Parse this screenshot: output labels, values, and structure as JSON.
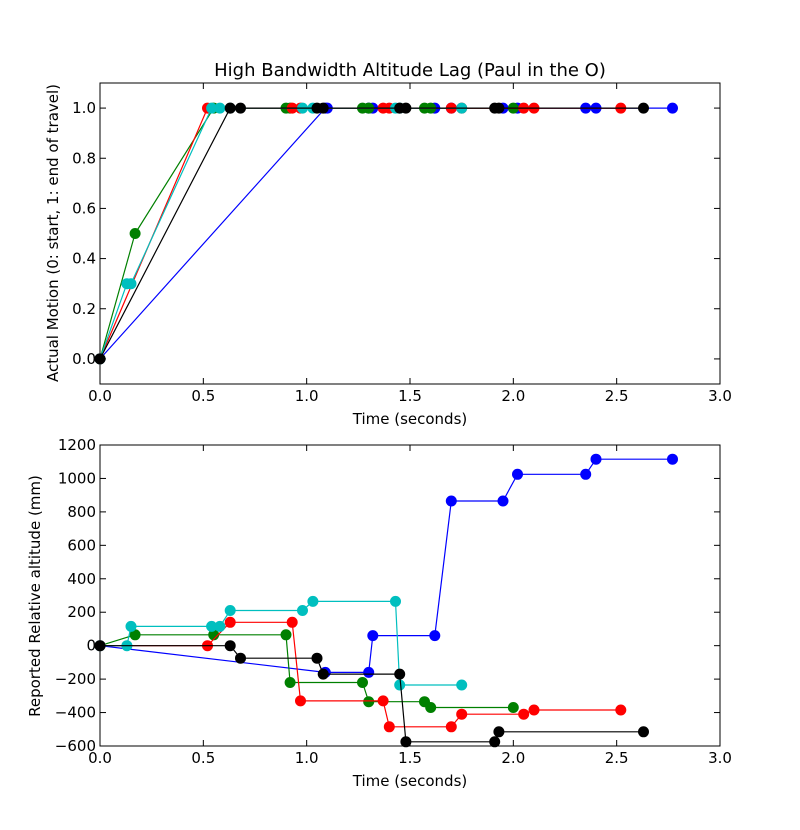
{
  "chart_data": [
    {
      "type": "line",
      "title": "High Bandwidth Altitude Lag (Paul in the O)",
      "xlabel": "Time (seconds)",
      "ylabel": "Actual Motion (0: start, 1: end of travel)",
      "xlim": [
        0,
        3.0
      ],
      "ylim": [
        -0.1,
        1.1
      ],
      "x_ticks": [
        "0.0",
        "0.5",
        "1.0",
        "1.5",
        "2.0",
        "2.5",
        "3.0"
      ],
      "y_ticks": [
        "0.0",
        "0.2",
        "0.4",
        "0.6",
        "0.8",
        "1.0"
      ],
      "x_tick_values": [
        0,
        0.5,
        1.0,
        1.5,
        2.0,
        2.5,
        3.0
      ],
      "y_tick_values": [
        0,
        0.2,
        0.4,
        0.6,
        0.8,
        1.0
      ],
      "grid": false,
      "series": [
        {
          "color": "#0000ff",
          "x": [
            0,
            1.09,
            1.1,
            1.3,
            1.32,
            1.62,
            1.7,
            1.95,
            2.02,
            2.35,
            2.4,
            2.77
          ],
          "y": [
            0,
            1,
            1,
            1,
            1,
            1,
            1,
            1,
            1,
            1,
            1,
            1
          ]
        },
        {
          "color": "#008000",
          "x": [
            0,
            0.17,
            0.55,
            0.9,
            0.92,
            1.27,
            1.3,
            1.57,
            1.6,
            2.0
          ],
          "y": [
            0,
            0.5,
            1,
            1,
            1,
            1,
            1,
            1,
            1,
            1
          ]
        },
        {
          "color": "#ff0000",
          "x": [
            0,
            0.52,
            0.63,
            0.93,
            0.97,
            1.37,
            1.4,
            1.7,
            1.75,
            2.05,
            2.1,
            2.52
          ],
          "y": [
            0,
            1,
            1,
            1,
            1,
            1,
            1,
            1,
            1,
            1,
            1,
            1
          ]
        },
        {
          "color": "#00bfbf",
          "x": [
            0,
            0.13,
            0.15,
            0.54,
            0.58,
            0.63,
            0.98,
            1.03,
            1.43,
            1.45,
            1.75
          ],
          "y": [
            0,
            0.3,
            0.3,
            1,
            1,
            1,
            1,
            1,
            1,
            1,
            1
          ]
        },
        {
          "color": "#000000",
          "x": [
            0,
            0.63,
            0.68,
            1.05,
            1.08,
            1.45,
            1.48,
            1.91,
            1.93,
            2.63
          ],
          "y": [
            0,
            1,
            1,
            1,
            1,
            1,
            1,
            1,
            1,
            1
          ]
        }
      ]
    },
    {
      "type": "line",
      "title": "",
      "xlabel": "Time (seconds)",
      "ylabel": "Reported Relative altitude (mm)",
      "xlim": [
        0,
        3.0
      ],
      "ylim": [
        -600,
        1200
      ],
      "x_ticks": [
        "0.0",
        "0.5",
        "1.0",
        "1.5",
        "2.0",
        "2.5",
        "3.0"
      ],
      "y_ticks": [
        "−600",
        "−400",
        "−200",
        "0",
        "200",
        "400",
        "600",
        "800",
        "1000",
        "1200"
      ],
      "x_tick_values": [
        0,
        0.5,
        1.0,
        1.5,
        2.0,
        2.5,
        3.0
      ],
      "y_tick_values": [
        -600,
        -400,
        -200,
        0,
        200,
        400,
        600,
        800,
        1000,
        1200
      ],
      "grid": false,
      "series": [
        {
          "color": "#0000ff",
          "x": [
            0,
            1.09,
            1.3,
            1.32,
            1.62,
            1.7,
            1.95,
            2.02,
            2.35,
            2.4,
            2.77
          ],
          "y": [
            0,
            -160,
            -160,
            60,
            60,
            865,
            865,
            1025,
            1025,
            1115,
            1115
          ]
        },
        {
          "color": "#008000",
          "x": [
            0,
            0.17,
            0.55,
            0.9,
            0.92,
            1.27,
            1.3,
            1.57,
            1.6,
            2.0
          ],
          "y": [
            0,
            65,
            65,
            65,
            -220,
            -220,
            -335,
            -335,
            -370,
            -370
          ]
        },
        {
          "color": "#ff0000",
          "x": [
            0,
            0.52,
            0.63,
            0.93,
            0.97,
            1.37,
            1.4,
            1.7,
            1.75,
            2.05,
            2.1,
            2.52
          ],
          "y": [
            0,
            0,
            140,
            140,
            -330,
            -330,
            -485,
            -485,
            -410,
            -410,
            -385,
            -385
          ]
        },
        {
          "color": "#00bfbf",
          "x": [
            0,
            0.13,
            0.15,
            0.54,
            0.58,
            0.63,
            0.98,
            1.03,
            1.43,
            1.45,
            1.75
          ],
          "y": [
            0,
            0,
            115,
            115,
            115,
            210,
            210,
            265,
            265,
            -235,
            -235
          ]
        },
        {
          "color": "#000000",
          "x": [
            0,
            0.63,
            0.68,
            1.05,
            1.08,
            1.45,
            1.48,
            1.91,
            1.93,
            2.63
          ],
          "y": [
            0,
            0,
            -75,
            -75,
            -170,
            -170,
            -575,
            -575,
            -515,
            -515
          ]
        }
      ]
    }
  ]
}
